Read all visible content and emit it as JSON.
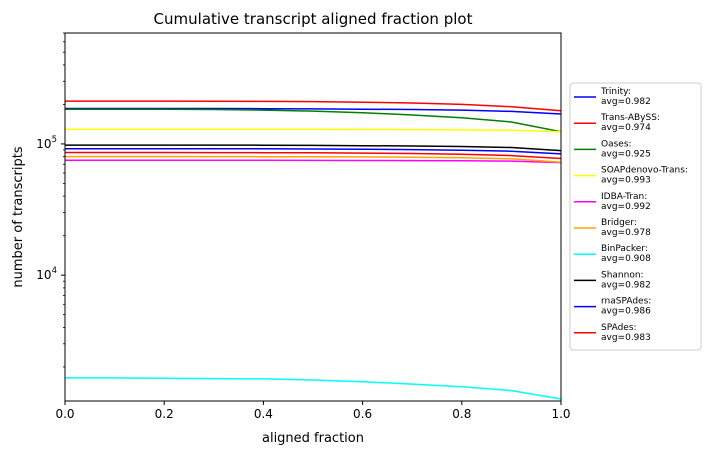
{
  "chart_data": {
    "type": "line",
    "title": "Cumulative transcript aligned fraction plot",
    "xlabel": "aligned fraction",
    "ylabel": "number of transcripts",
    "xlim": [
      0,
      1
    ],
    "ylim": [
      1100,
      700000
    ],
    "yscale": "log",
    "grid": false,
    "legend_position": "right",
    "x_ticks": [
      {
        "value": 0.0,
        "label": "0.0"
      },
      {
        "value": 0.2,
        "label": "0.2"
      },
      {
        "value": 0.4,
        "label": "0.4"
      },
      {
        "value": 0.6,
        "label": "0.6"
      },
      {
        "value": 0.8,
        "label": "0.8"
      },
      {
        "value": 1.0,
        "label": "1.0"
      }
    ],
    "y_ticks": [
      {
        "value": 10000,
        "base": "10",
        "exp": "4"
      },
      {
        "value": 100000,
        "base": "10",
        "exp": "5"
      }
    ],
    "x": [
      0.0,
      0.1,
      0.2,
      0.3,
      0.4,
      0.5,
      0.6,
      0.7,
      0.8,
      0.9,
      1.0
    ],
    "series": [
      {
        "line1": "Trinity:",
        "line2": "avg=0.982",
        "color": "#0000ff",
        "values": [
          186000,
          186000,
          186000,
          186000,
          185500,
          185000,
          184000,
          183000,
          181000,
          177000,
          169000
        ]
      },
      {
        "line1": "Trans-ABySS:",
        "line2": "avg=0.974",
        "color": "#ff0000",
        "values": [
          212000,
          212000,
          212000,
          211500,
          211000,
          210000,
          208000,
          205000,
          200000,
          192000,
          179000
        ]
      },
      {
        "line1": "Oases:",
        "line2": "avg=0.925",
        "color": "#008000",
        "values": [
          184000,
          184000,
          183500,
          183000,
          181000,
          178000,
          173000,
          166000,
          158000,
          147000,
          124000
        ]
      },
      {
        "line1": "SOAPdenovo-Trans:",
        "line2": "avg=0.993",
        "color": "#ffff00",
        "values": [
          129000,
          129000,
          129000,
          129000,
          129000,
          129000,
          128800,
          128500,
          128000,
          127000,
          124000
        ]
      },
      {
        "line1": "IDBA-Tran:",
        "line2": "avg=0.992",
        "color": "#ff00ff",
        "values": [
          75000,
          75000,
          75000,
          75000,
          75000,
          74900,
          74800,
          74700,
          74500,
          74000,
          72000
        ]
      },
      {
        "line1": "Bridger:",
        "line2": "avg=0.978",
        "color": "#ffa500",
        "values": [
          80000,
          80000,
          80000,
          80000,
          79900,
          79800,
          79600,
          79200,
          78500,
          77000,
          72500
        ]
      },
      {
        "line1": "BinPacker:",
        "line2": "avg=0.908",
        "color": "#00ffff",
        "values": [
          1650,
          1650,
          1640,
          1630,
          1620,
          1590,
          1540,
          1480,
          1410,
          1320,
          1140
        ]
      },
      {
        "line1": "Shannon:",
        "line2": "avg=0.982",
        "color": "#000000",
        "values": [
          98000,
          98000,
          98000,
          97900,
          97800,
          97500,
          97000,
          96500,
          95500,
          94000,
          89000
        ]
      },
      {
        "line1": "rnaSPAdes:",
        "line2": "avg=0.986",
        "color": "#0000ff",
        "values": [
          92000,
          92000,
          92000,
          91900,
          91800,
          91500,
          91000,
          90500,
          89500,
          88000,
          84000
        ]
      },
      {
        "line1": "SPAdes:",
        "line2": "avg=0.983",
        "color": "#ff0000",
        "values": [
          86000,
          86000,
          86000,
          85900,
          85800,
          85600,
          85200,
          84600,
          83500,
          81500,
          77500
        ]
      }
    ]
  }
}
